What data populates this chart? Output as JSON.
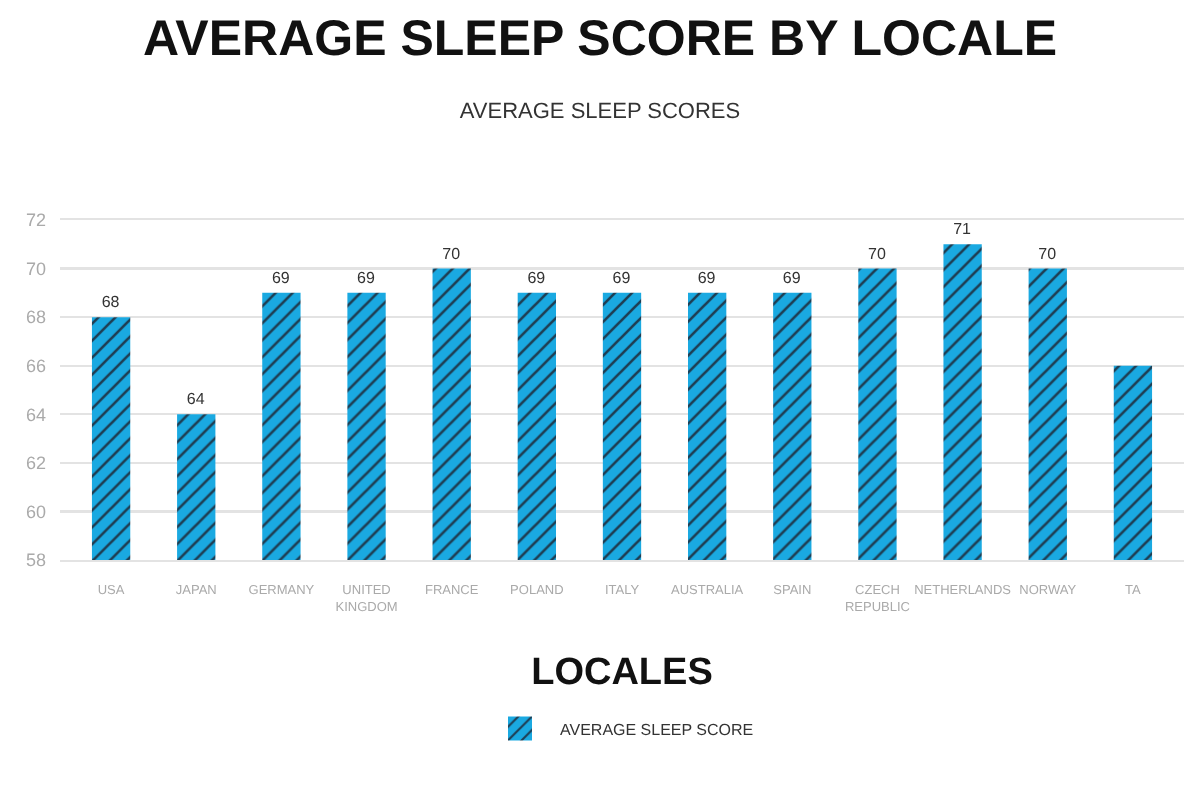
{
  "chart_data": {
    "type": "bar",
    "title": "AVERAGE SLEEP SCORE BY LOCALE",
    "subtitle": "AVERAGE SLEEP SCORES",
    "xlabel": "LOCALES",
    "categories": [
      "USA",
      "JAPAN",
      "GERMANY",
      "UNITED KINGDOM",
      "FRANCE",
      "POLAND",
      "ITALY",
      "AUSTRALIA",
      "SPAIN",
      "CZECH REPUBLIC",
      "NETHERLANDS",
      "NORWAY",
      "TA"
    ],
    "series": [
      {
        "name": "AVERAGE SLEEP SCORE",
        "color": "#1aa9e1",
        "values": [
          68,
          64,
          69,
          69,
          70,
          69,
          69,
          69,
          69,
          70,
          71,
          70,
          66
        ],
        "value_labels": [
          "68",
          "64",
          "69",
          "69",
          "70",
          "69",
          "69",
          "69",
          "69",
          "70",
          "71",
          "70",
          null
        ]
      }
    ],
    "ylim": [
      58,
      72
    ],
    "yticks": [
      58,
      60,
      62,
      64,
      66,
      68,
      70,
      72
    ],
    "grid": "y",
    "legend": "bottom"
  }
}
